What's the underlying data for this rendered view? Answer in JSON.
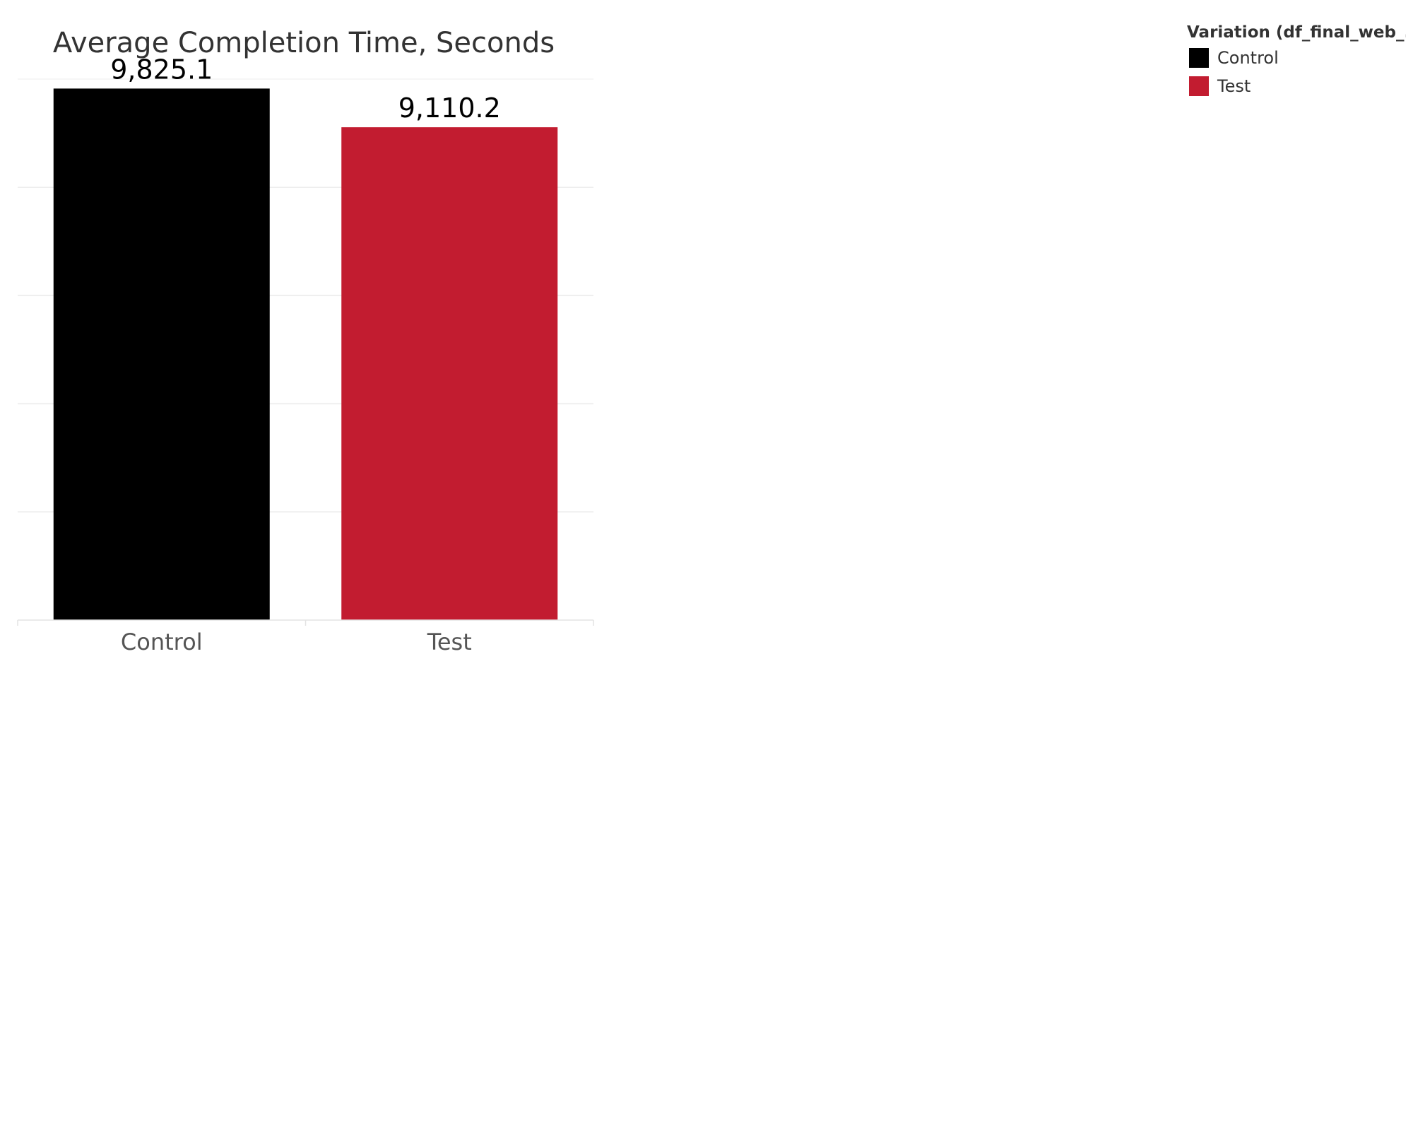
{
  "chart_data": {
    "type": "bar",
    "title": "Average Completion Time, Seconds",
    "categories": [
      "Control",
      "Test"
    ],
    "values": [
      9825.1,
      9110.2
    ],
    "value_labels": [
      "9,825.1",
      "9,110.2"
    ],
    "colors": [
      "#000000",
      "#c21c30"
    ],
    "xlabel": "",
    "ylabel": "",
    "ylim": [
      0,
      10000
    ],
    "grid": true,
    "legend": {
      "title": "Variation (df_final_web_..",
      "placement": "top-right",
      "items": [
        {
          "label": "Control",
          "color": "#000000"
        },
        {
          "label": "Test",
          "color": "#c21c30"
        }
      ]
    }
  }
}
